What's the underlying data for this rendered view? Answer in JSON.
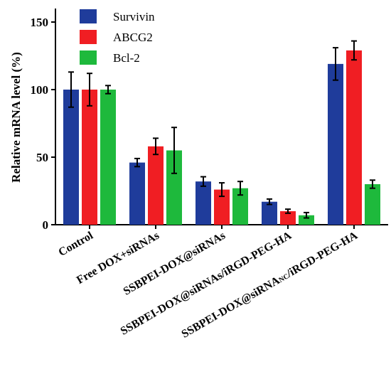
{
  "chart_data": {
    "type": "bar",
    "title": "",
    "xlabel": "",
    "ylabel": "Relative mRNA level (%)",
    "ylim": [
      0,
      160
    ],
    "yticks": [
      "0",
      "50",
      "100",
      "150"
    ],
    "categories": [
      "Control",
      "Free DOX+siRNAs",
      "SSBPEI-DOX@siRNAs",
      "SSBPEI-DOX@siRNAs/iRGD-PEG-HA",
      "SSBPEI-DOX@siRNANC/iRGD-PEG-HA"
    ],
    "series": [
      {
        "name": "Survivin",
        "color": "#1f3c9b",
        "values": [
          100,
          46,
          32,
          17,
          119
        ],
        "errors": [
          13,
          3,
          3.5,
          2,
          12
        ]
      },
      {
        "name": "ABCG2",
        "color": "#f01e23",
        "values": [
          100,
          58,
          26,
          10,
          129
        ],
        "errors": [
          12,
          6,
          5,
          1.5,
          7
        ]
      },
      {
        "name": "Bcl-2",
        "color": "#1eb93c",
        "values": [
          100,
          55,
          27,
          7,
          30
        ],
        "errors": [
          3,
          17,
          5,
          2,
          3
        ]
      }
    ],
    "legend_position": "top-left",
    "grid": false
  }
}
